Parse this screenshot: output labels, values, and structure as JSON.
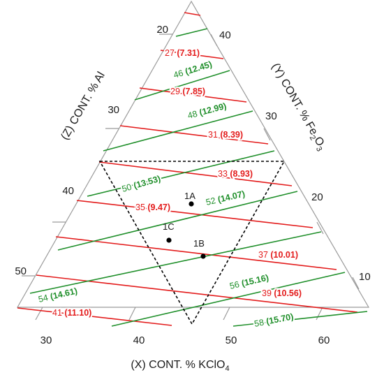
{
  "axes": {
    "x_title": "(X) CONT. % KClO",
    "x_sub": "4",
    "y_title_a": "(Y) CONT. % Fe",
    "y_sub_a": "2",
    "y_title_b": "O",
    "y_sub_b": "3",
    "z_title": "(Z) CONT. % Al",
    "bottom_ticks": [
      "30",
      "40",
      "50",
      "60"
    ],
    "left_ticks": [
      "20",
      "30",
      "40",
      "50"
    ],
    "right_ticks": [
      "40",
      "30",
      "20",
      "10"
    ]
  },
  "red_isolines": [
    {
      "a": "27",
      "b": "(7.31)"
    },
    {
      "a": "29",
      "b": "(7.85)"
    },
    {
      "a": "31",
      "b": "(8.39)"
    },
    {
      "a": "33",
      "b": "(8.93)"
    },
    {
      "a": "35",
      "b": "(9.47)"
    },
    {
      "a": "37",
      "b": "(10.01)"
    },
    {
      "a": "39",
      "b": "(10.56)"
    },
    {
      "a": "41",
      "b": "(11.10)"
    }
  ],
  "green_isolines": [
    {
      "a": "46",
      "b": "(12.45)"
    },
    {
      "a": "48",
      "b": "(12.99)"
    },
    {
      "a": "50",
      "b": "(13.53)"
    },
    {
      "a": "52",
      "b": "(14.07)"
    },
    {
      "a": "54",
      "b": "(14.61)"
    },
    {
      "a": "56",
      "b": "(15.16)"
    },
    {
      "a": "58",
      "b": "(15.70)"
    }
  ],
  "points": [
    {
      "label": "1A"
    },
    {
      "label": "1B"
    },
    {
      "label": "1C"
    }
  ],
  "colors": {
    "red": "#e31b1b",
    "green": "#1f8f2a",
    "frame": "#9a9a9a",
    "text": "#1a1a1a"
  }
}
